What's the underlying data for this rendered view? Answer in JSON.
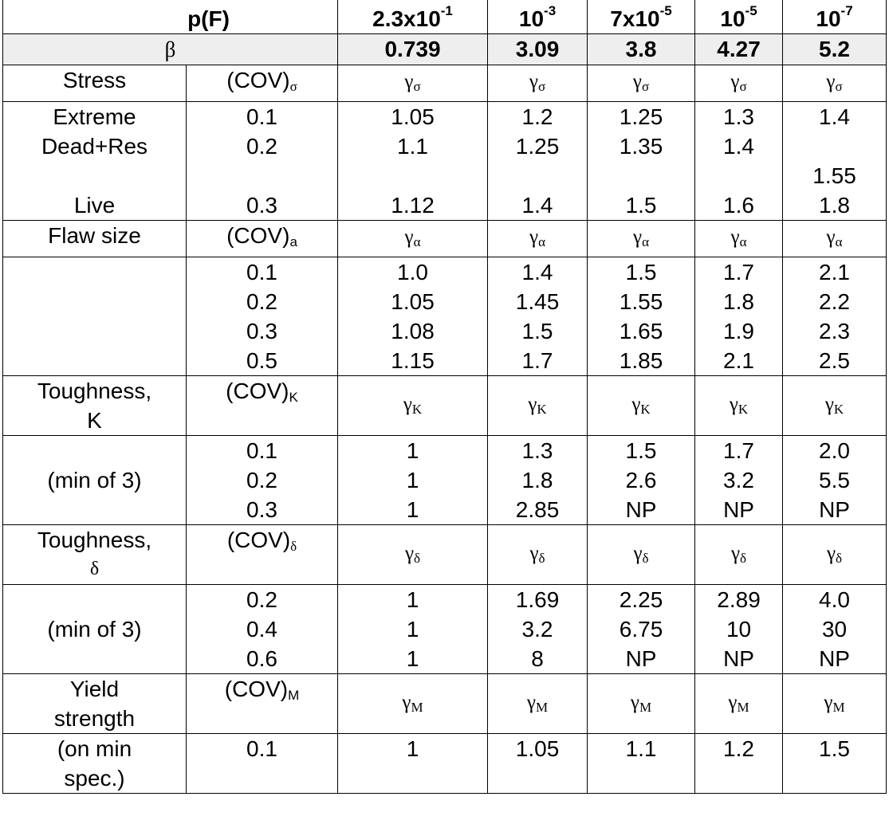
{
  "header": {
    "pf_label": "p(F)",
    "pf_values": [
      {
        "base": "2.3x10",
        "exp": "-1"
      },
      {
        "base": "10",
        "exp": "-3"
      },
      {
        "base": "7x10",
        "exp": "-5"
      },
      {
        "base": "10",
        "exp": "-5"
      },
      {
        "base": "10",
        "exp": "-7"
      }
    ],
    "beta_label": "β",
    "beta_values": [
      "0.739",
      "3.09",
      "3.8",
      "4.27",
      "5.2"
    ]
  },
  "stress": {
    "label": "Stress",
    "cov_label": "(COV)",
    "cov_sub": "σ",
    "gamma": "γ",
    "gamma_sub": "σ",
    "cases": [
      "Extreme",
      "Dead+Res",
      "",
      "Live"
    ],
    "covs": [
      "0.1",
      "0.2",
      "",
      "0.3"
    ],
    "rows": [
      [
        "1.05",
        "1.2",
        "1.25",
        "1.3",
        "1.4"
      ],
      [
        "1.1",
        "1.25",
        "1.35",
        "1.4",
        ""
      ],
      [
        "",
        "",
        "",
        "",
        "1.55"
      ],
      [
        "1.12",
        "1.4",
        "1.5",
        "1.6",
        "1.8"
      ]
    ]
  },
  "flaw": {
    "label": "Flaw size",
    "cov_label": "(COV)",
    "cov_sub": "a",
    "gamma": "γ",
    "gamma_sub": "α",
    "covs": [
      "0.1",
      "0.2",
      "0.3",
      "0.5"
    ],
    "rows": [
      [
        "1.0",
        "1.4",
        "1.5",
        "1.7",
        "2.1"
      ],
      [
        "1.05",
        "1.45",
        "1.55",
        "1.8",
        "2.2"
      ],
      [
        "1.08",
        "1.5",
        "1.65",
        "1.9",
        "2.3"
      ],
      [
        "1.15",
        "1.7",
        "1.85",
        "2.1",
        "2.5"
      ]
    ]
  },
  "toughK": {
    "label_line1": "Toughness,",
    "label_line2": "K",
    "cov_label": "(COV)",
    "cov_sub": "K",
    "gamma": "γ",
    "gamma_sub": "K",
    "note": "(min of 3)",
    "covs": [
      "0.1",
      "0.2",
      "0.3"
    ],
    "rows": [
      [
        "1",
        "1.3",
        "1.5",
        "1.7",
        "2.0"
      ],
      [
        "1",
        "1.8",
        "2.6",
        "3.2",
        "5.5"
      ],
      [
        "1",
        "2.85",
        "NP",
        "NP",
        "NP"
      ]
    ]
  },
  "toughD": {
    "label_line1": "Toughness,",
    "label_line2": "δ",
    "cov_label": "(COV)",
    "cov_sub": "δ",
    "gamma": "γ",
    "gamma_sub": "δ",
    "note": "(min of 3)",
    "covs": [
      "0.2",
      "0.4",
      "0.6"
    ],
    "rows": [
      [
        "1",
        "1.69",
        "2.25",
        "2.89",
        "4.0"
      ],
      [
        "1",
        "3.2",
        "6.75",
        "10",
        "30"
      ],
      [
        "1",
        "8",
        "NP",
        "NP",
        "NP"
      ]
    ]
  },
  "yield": {
    "label_line1": "Yield",
    "label_line2": "strength",
    "cov_label": "(COV)",
    "cov_sub": "M",
    "gamma": "γ",
    "gamma_sub": "M",
    "note_line1": "(on min",
    "note_line2": "spec.)",
    "cov": "0.1",
    "row": [
      "1",
      "1.05",
      "1.1",
      "1.2",
      "1.5"
    ]
  }
}
